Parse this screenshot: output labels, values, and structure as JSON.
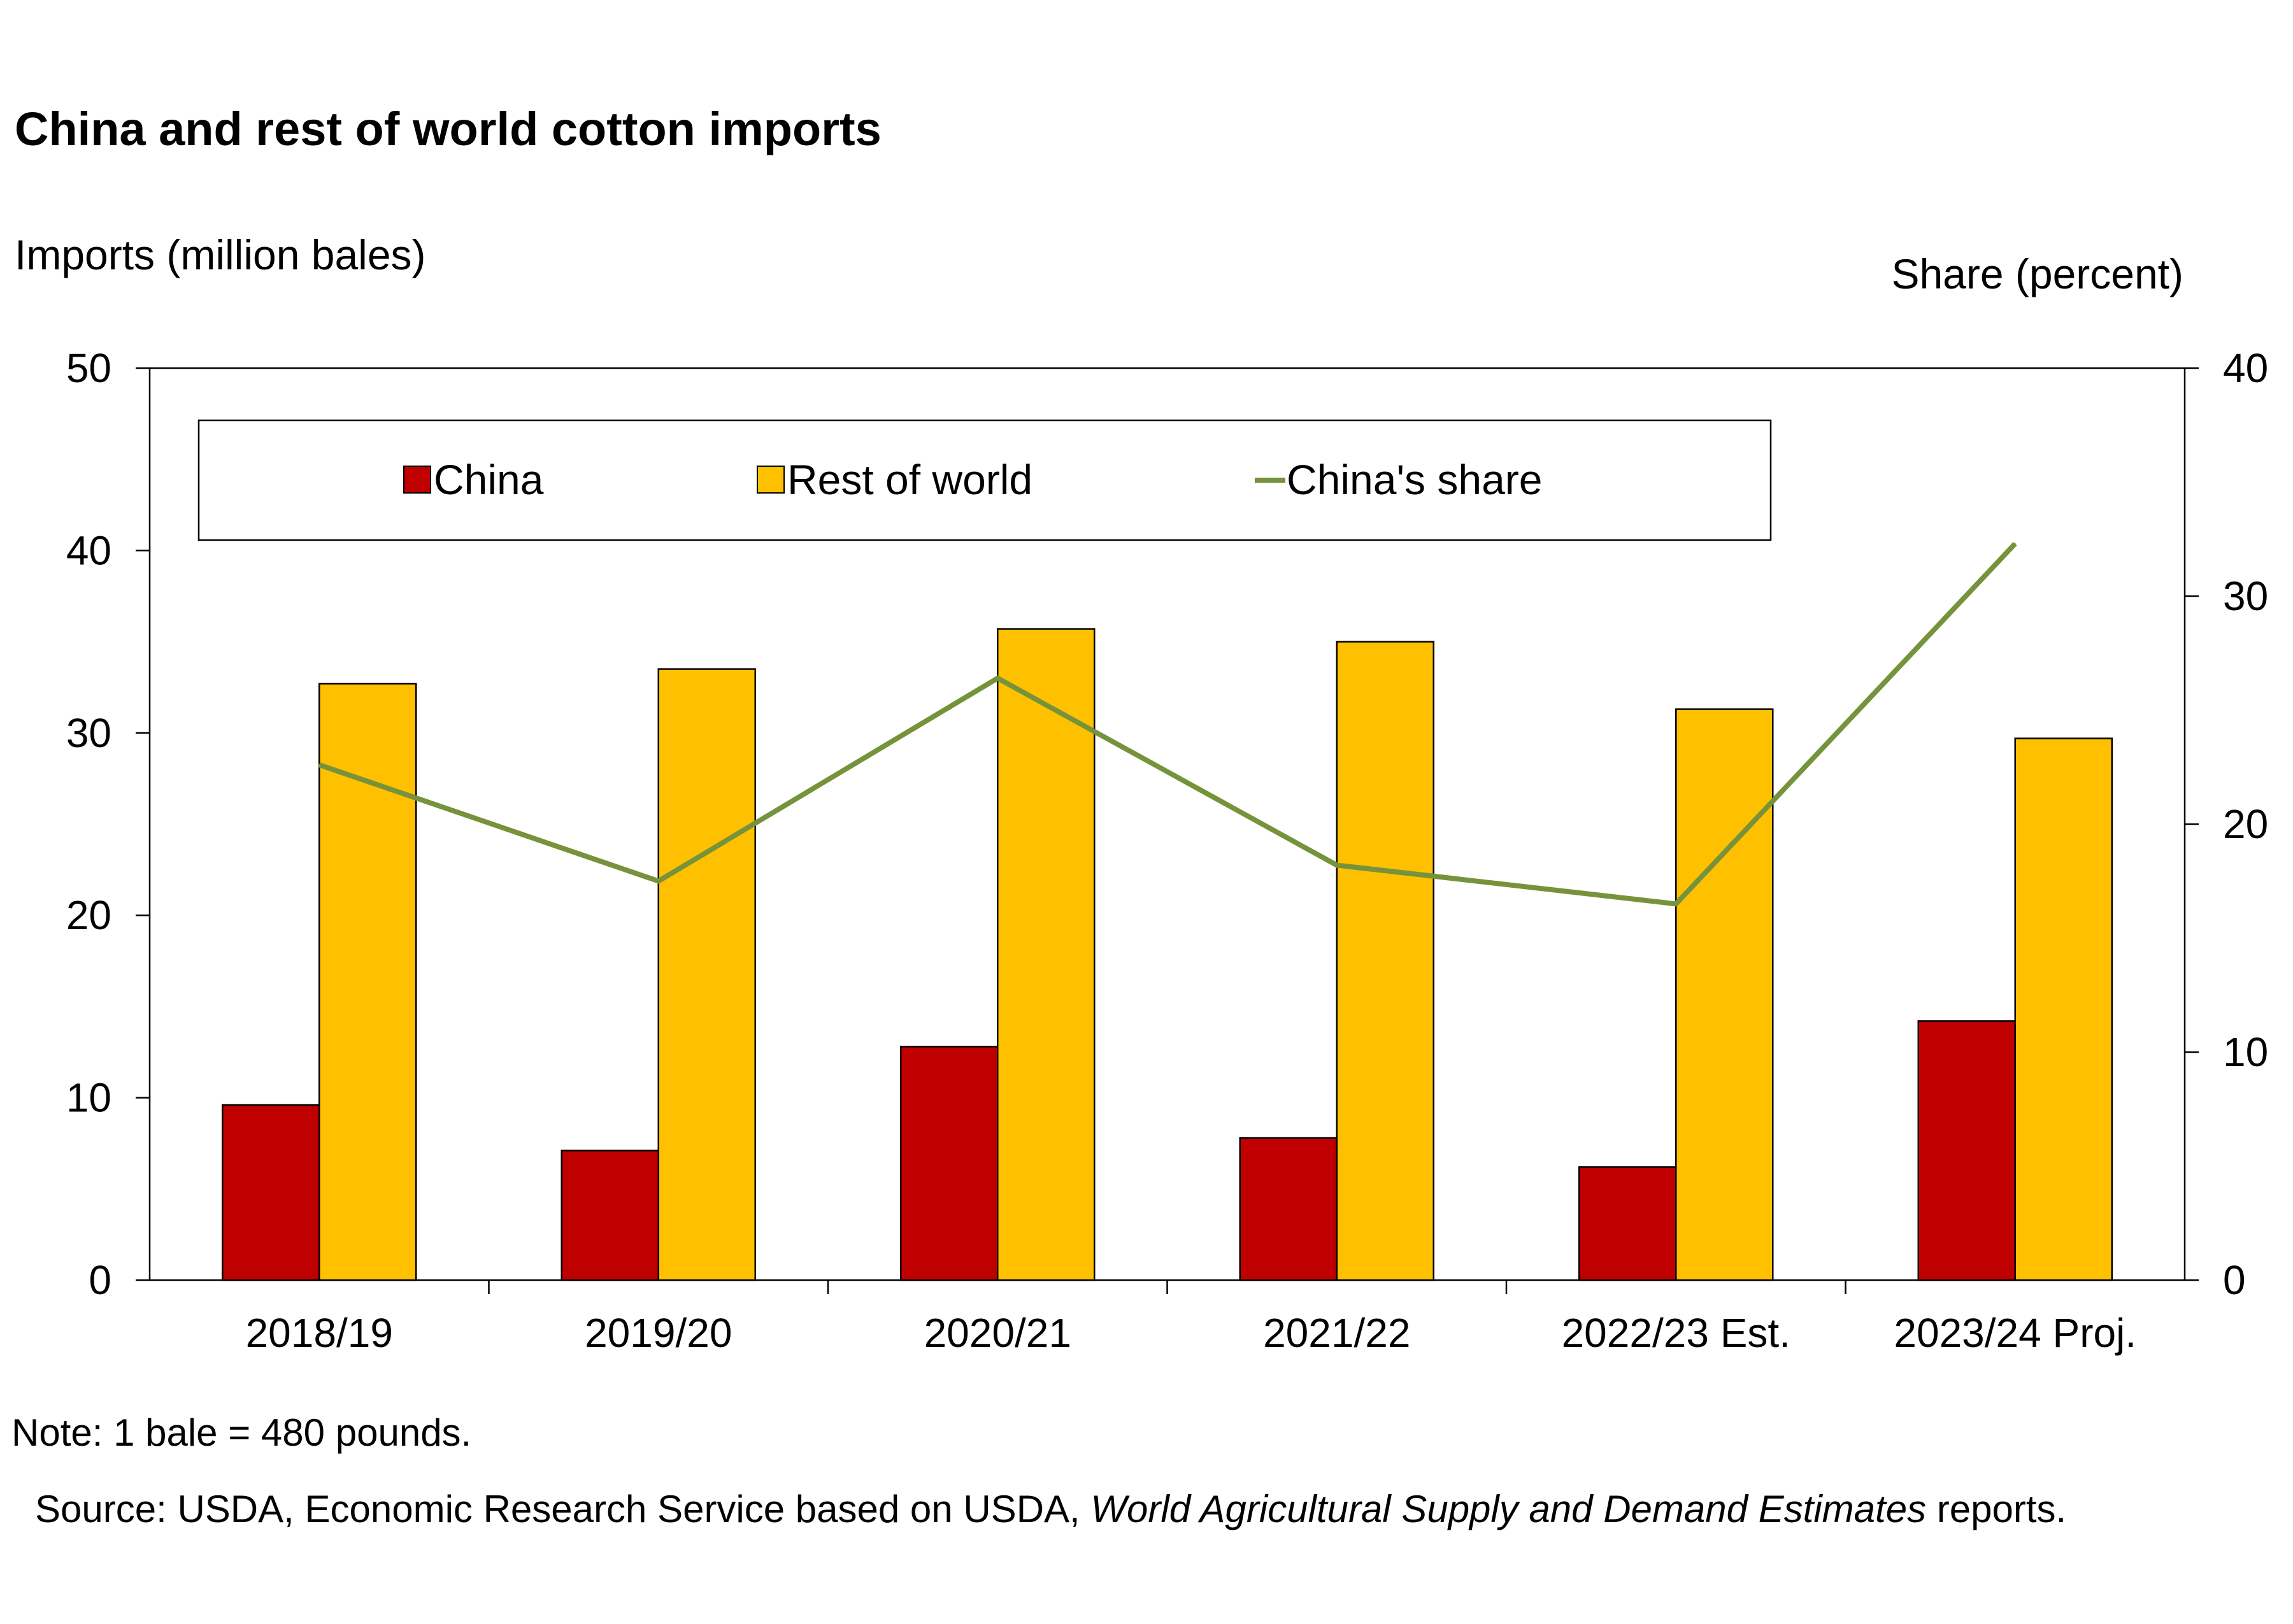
{
  "title": "China and rest of world cotton imports",
  "note": "Note: 1 bale = 480 pounds.",
  "source": {
    "prefix": "Source: USDA, Economic Research Service based on USDA, ",
    "italic": "World Agricultural Supply and Demand Estimates",
    "suffix": " reports."
  },
  "colors": {
    "china": "#c00000",
    "rest_of_world": "#ffc000",
    "share_line": "#76933c"
  },
  "chart_data": {
    "type": "bar",
    "categories": [
      "2018/19",
      "2019/20",
      "2020/21",
      "2021/22",
      "2022/23 Est.",
      "2023/24 Proj."
    ],
    "series": [
      {
        "name": "China",
        "type": "bar",
        "axis": "left",
        "values": [
          9.6,
          7.1,
          12.8,
          7.8,
          6.2,
          14.2
        ]
      },
      {
        "name": "Rest of world",
        "type": "bar",
        "axis": "left",
        "values": [
          32.7,
          33.5,
          35.7,
          35.0,
          31.3,
          29.7
        ]
      },
      {
        "name": "China's share",
        "type": "line",
        "axis": "right",
        "values": [
          22.6,
          17.5,
          26.4,
          18.2,
          16.5,
          32.3
        ]
      }
    ],
    "ylabel": "Imports (million bales)",
    "ylabel_right": "Share (percent)",
    "ylim": [
      0,
      50
    ],
    "ylim_right": [
      0,
      40
    ],
    "yticks": [
      0,
      10,
      20,
      30,
      40,
      50
    ],
    "yticks_right": [
      0,
      10,
      20,
      30,
      40
    ],
    "legend_position": "top",
    "grid": false
  }
}
